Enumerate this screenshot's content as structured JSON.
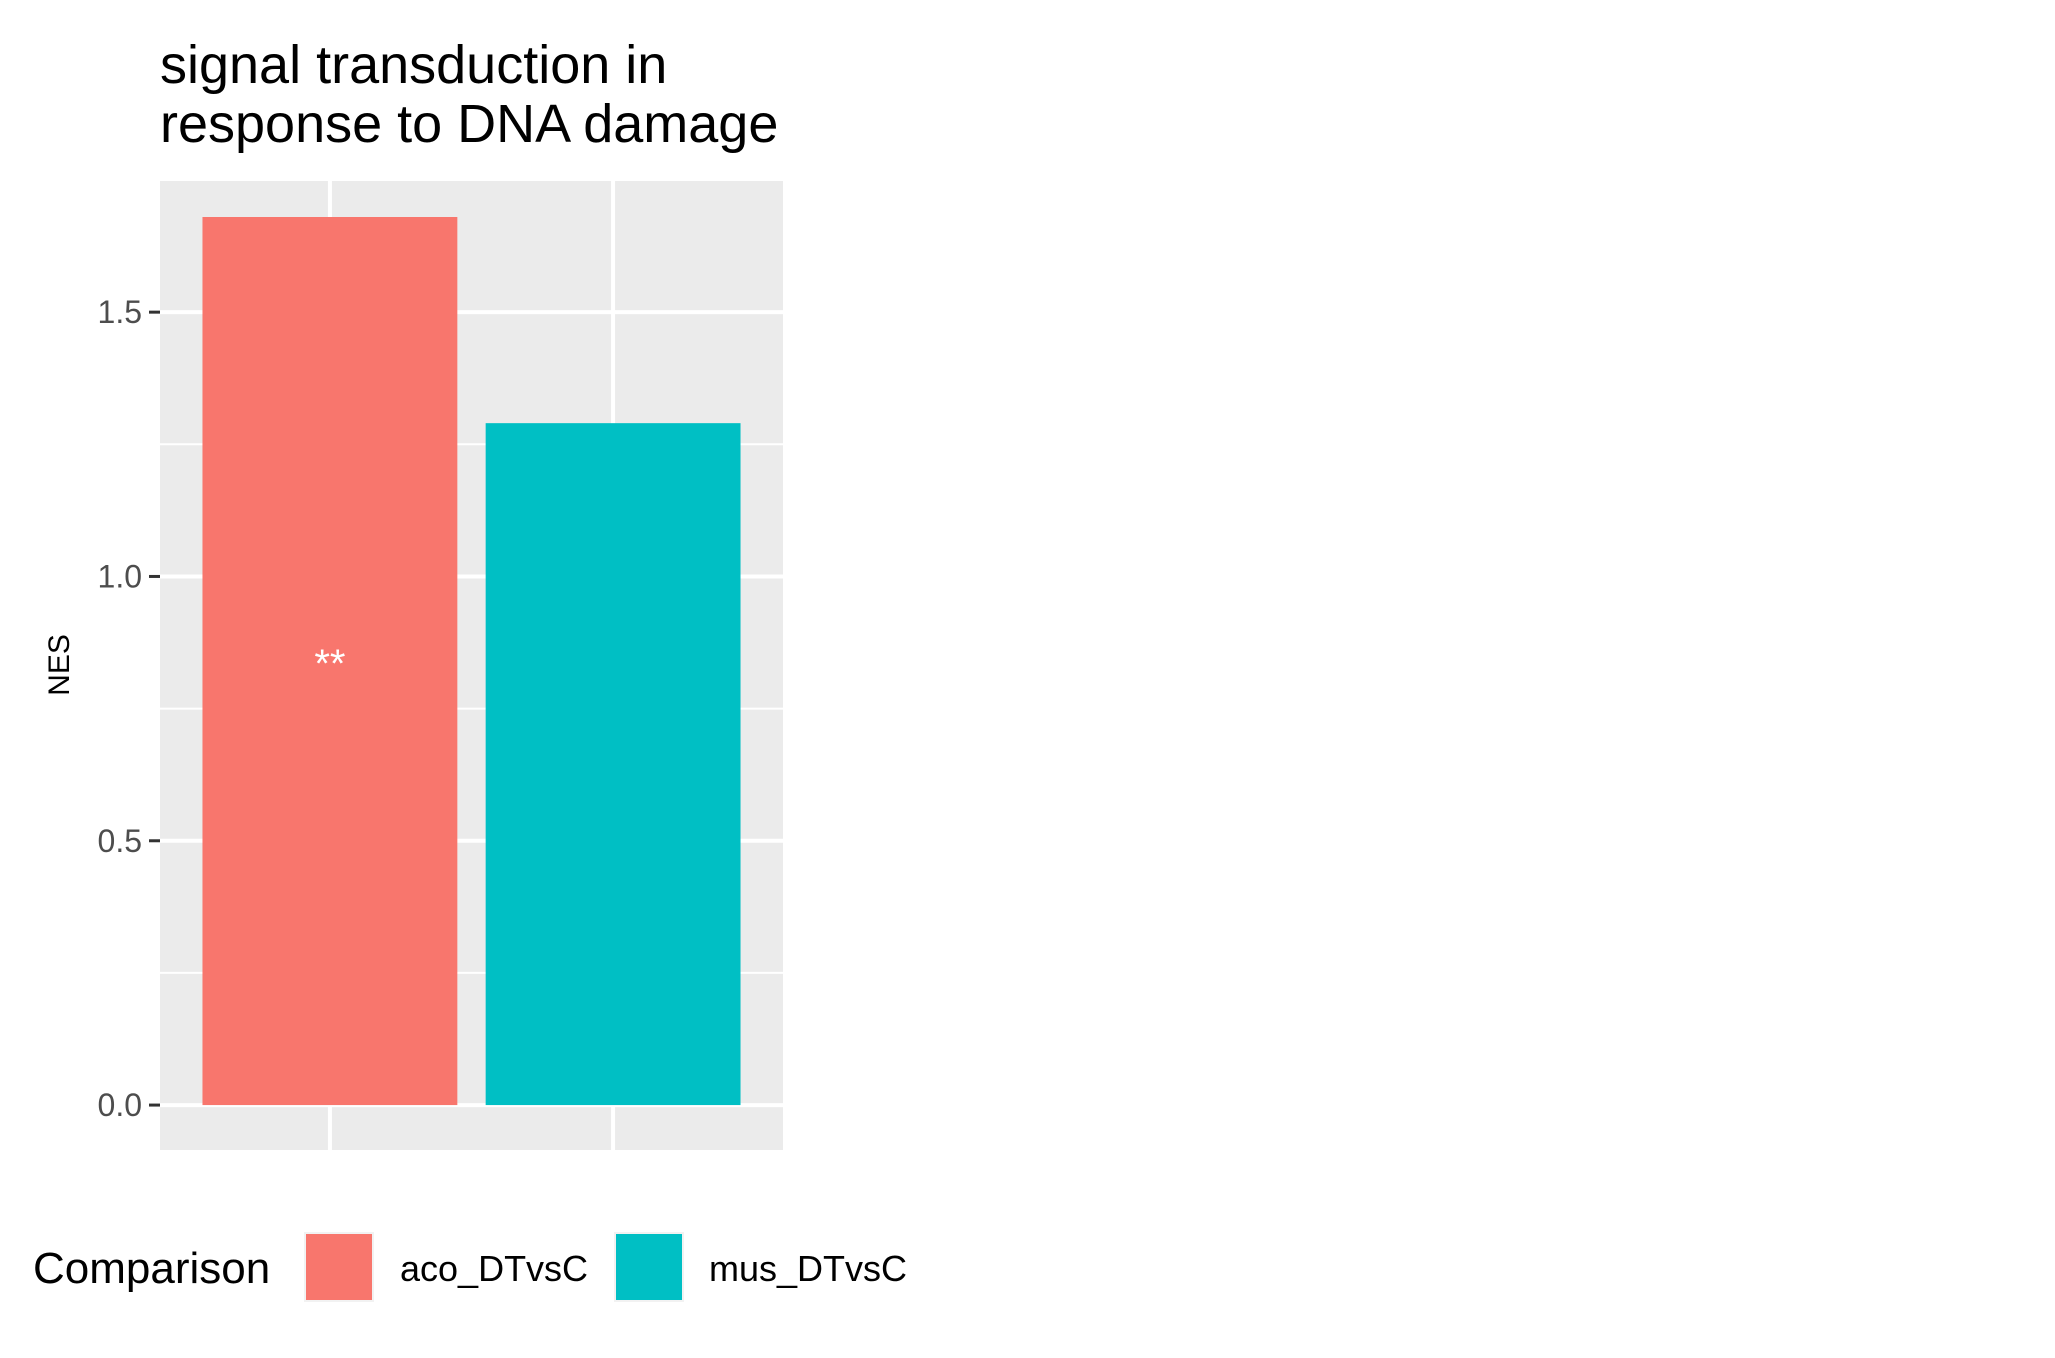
{
  "chart_data": {
    "type": "bar",
    "title_lines": [
      "signal transduction in",
      "response to DNA damage"
    ],
    "xlabel": "",
    "ylabel": "NES",
    "categories": [
      "aco_DTvsC",
      "mus_DTvsC"
    ],
    "values": [
      1.68,
      1.29
    ],
    "colors": [
      "#F8766D",
      "#00BFC4"
    ],
    "annotations": [
      "**",
      ""
    ],
    "ylim": [
      -0.085,
      1.75
    ],
    "yticks": [
      0.0,
      0.5,
      1.0,
      1.5
    ],
    "ytick_labels": [
      "0.0",
      "0.5",
      "1.0",
      "1.5"
    ],
    "grid": true,
    "legend": {
      "title": "Comparison",
      "position": "bottom",
      "entries": [
        "aco_DTvsC",
        "mus_DTvsC"
      ]
    }
  }
}
